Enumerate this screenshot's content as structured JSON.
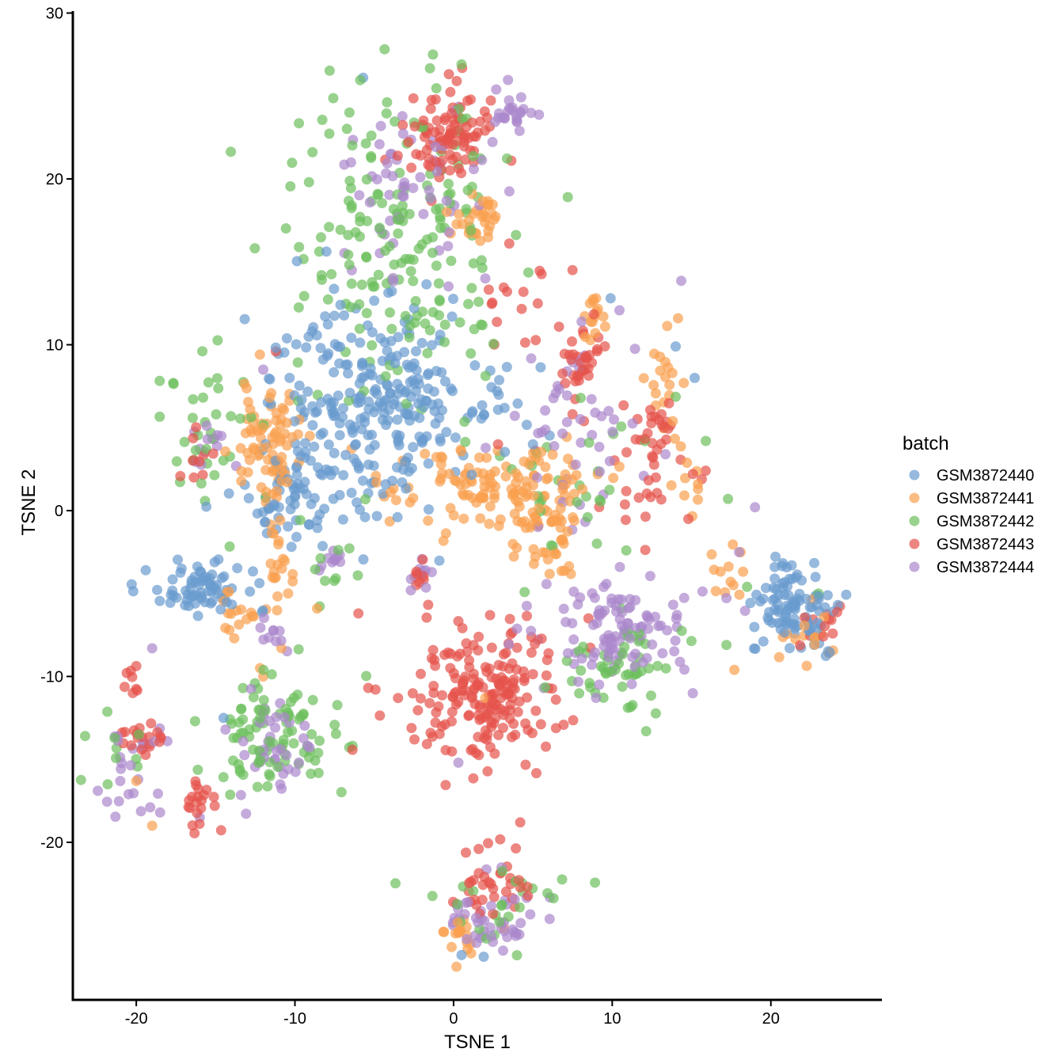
{
  "chart_data": {
    "type": "scatter",
    "title": "",
    "xlabel": "TSNE 1",
    "ylabel": "TSNE 2",
    "xlim": [
      -24,
      27
    ],
    "ylim": [
      -29.5,
      30.5
    ],
    "x_ticks": [
      -20,
      -10,
      0,
      10,
      20
    ],
    "y_ticks": [
      -20,
      -10,
      0,
      10,
      20,
      30
    ],
    "x_tick_labels": [
      "-20",
      "-10",
      "0",
      "10",
      "20"
    ],
    "y_tick_labels": [
      "-20",
      "-10",
      "0",
      "10",
      "20",
      "30"
    ],
    "grid": false,
    "legend": {
      "title": "batch",
      "placement": "right"
    },
    "series": [
      {
        "name": "GSM3872440",
        "color": "#6a9bcf",
        "clusters": [
          {
            "cx": -5.0,
            "cy": 6.5,
            "sx": 3.0,
            "sy": 3.0,
            "n": 260
          },
          {
            "cx": -10.5,
            "cy": 0.3,
            "sx": 1.8,
            "sy": 1.2,
            "n": 50
          },
          {
            "cx": -16.0,
            "cy": -4.8,
            "sx": 1.5,
            "sy": 0.9,
            "n": 70
          },
          {
            "cx": 21.5,
            "cy": -5.5,
            "sx": 1.6,
            "sy": 1.5,
            "n": 100
          },
          {
            "cx": 2.0,
            "cy": 6.0,
            "sx": 1.5,
            "sy": 1.5,
            "n": 20
          },
          {
            "cx": -8.5,
            "cy": 2.5,
            "sx": 1.2,
            "sy": 1.0,
            "n": 15
          }
        ],
        "points": [
          {
            "x": -5.7,
            "y": 26.1
          },
          {
            "x": 9.9,
            "y": 12.8
          },
          {
            "x": 15.2,
            "y": 8.0
          },
          {
            "x": 14.0,
            "y": 9.9
          },
          {
            "x": 0.5,
            "y": -26.8
          },
          {
            "x": 1.9,
            "y": -26.9
          },
          {
            "x": -14.5,
            "y": -12.5
          }
        ]
      },
      {
        "name": "GSM3872441",
        "color": "#f9a04e",
        "clusters": [
          {
            "cx": -11.5,
            "cy": 4.0,
            "sx": 1.0,
            "sy": 2.0,
            "n": 80
          },
          {
            "cx": 2.0,
            "cy": 1.5,
            "sx": 3.0,
            "sy": 1.3,
            "n": 110
          },
          {
            "cx": 6.0,
            "cy": -1.0,
            "sx": 1.5,
            "sy": 1.5,
            "n": 60
          },
          {
            "cx": 1.5,
            "cy": 17.5,
            "sx": 0.9,
            "sy": 0.9,
            "n": 30
          },
          {
            "cx": 8.9,
            "cy": 11.8,
            "sx": 0.4,
            "sy": 0.7,
            "n": 15
          },
          {
            "cx": 13.5,
            "cy": 7.5,
            "sx": 0.8,
            "sy": 1.5,
            "n": 20
          },
          {
            "cx": -13.8,
            "cy": -6.5,
            "sx": 0.6,
            "sy": 0.8,
            "n": 15
          },
          {
            "cx": -11.0,
            "cy": -4.0,
            "sx": 0.5,
            "sy": 1.5,
            "n": 20
          },
          {
            "cx": 17.5,
            "cy": -4.0,
            "sx": 0.9,
            "sy": 0.8,
            "n": 12
          },
          {
            "cx": 22.5,
            "cy": -7.5,
            "sx": 1.0,
            "sy": 0.8,
            "n": 15
          },
          {
            "cx": 0.3,
            "cy": -25.5,
            "sx": 0.9,
            "sy": 0.7,
            "n": 18
          },
          {
            "cx": 15.0,
            "cy": 1.5,
            "sx": 0.5,
            "sy": 1.0,
            "n": 10
          }
        ],
        "points": [
          {
            "x": -12.2,
            "y": -9.5
          },
          {
            "x": -12.0,
            "y": -10.0
          },
          {
            "x": -19.0,
            "y": -19.0
          },
          {
            "x": -20.0,
            "y": -16.3
          },
          {
            "x": 17.7,
            "y": -9.6
          },
          {
            "x": 2.0,
            "y": -11.3
          },
          {
            "x": -8.6,
            "y": -5.9
          }
        ]
      },
      {
        "name": "GSM3872442",
        "color": "#6cbf5c",
        "clusters": [
          {
            "cx": -4.0,
            "cy": 16.5,
            "sx": 3.8,
            "sy": 5.5,
            "n": 190
          },
          {
            "cx": -11.0,
            "cy": -13.5,
            "sx": 2.0,
            "sy": 2.0,
            "n": 90
          },
          {
            "cx": 10.5,
            "cy": -9.5,
            "sx": 1.6,
            "sy": 1.4,
            "n": 50
          },
          {
            "cx": 2.5,
            "cy": -23.5,
            "sx": 2.3,
            "sy": 1.4,
            "n": 25
          },
          {
            "cx": -15.3,
            "cy": 4.5,
            "sx": 1.4,
            "sy": 2.8,
            "n": 35
          },
          {
            "cx": -21.0,
            "cy": -15.0,
            "sx": 0.8,
            "sy": 1.2,
            "n": 10
          },
          {
            "cx": 8.0,
            "cy": 3.0,
            "sx": 3.5,
            "sy": 3.0,
            "n": 30
          },
          {
            "cx": -7.5,
            "cy": -3.0,
            "sx": 1.0,
            "sy": 1.0,
            "n": 10
          }
        ],
        "points": [
          {
            "x": -1.3,
            "y": 27.5
          },
          {
            "x": 0.5,
            "y": 26.9
          },
          {
            "x": 7.2,
            "y": 18.9
          },
          {
            "x": 17.3,
            "y": 0.7
          },
          {
            "x": 15.9,
            "y": 4.2
          },
          {
            "x": 18.5,
            "y": -4.6
          },
          {
            "x": 23.0,
            "y": -5.0
          },
          {
            "x": 17.2,
            "y": -8.1
          }
        ]
      },
      {
        "name": "GSM3872443",
        "color": "#e5534b",
        "clusters": [
          {
            "cx": 0.0,
            "cy": 22.5,
            "sx": 1.5,
            "sy": 1.4,
            "n": 90
          },
          {
            "cx": 2.0,
            "cy": -11.0,
            "sx": 2.6,
            "sy": 2.2,
            "n": 190
          },
          {
            "cx": 8.0,
            "cy": 8.5,
            "sx": 0.9,
            "sy": 1.2,
            "n": 35
          },
          {
            "cx": 12.8,
            "cy": 4.8,
            "sx": 0.7,
            "sy": 0.8,
            "n": 20
          },
          {
            "cx": -19.5,
            "cy": -13.8,
            "sx": 0.8,
            "sy": 0.6,
            "n": 20
          },
          {
            "cx": -16.2,
            "cy": -17.8,
            "sx": 0.5,
            "sy": 0.8,
            "n": 20
          },
          {
            "cx": -20.0,
            "cy": -10.2,
            "sx": 0.3,
            "sy": 0.5,
            "n": 8
          },
          {
            "cx": 2.5,
            "cy": -22.5,
            "sx": 1.3,
            "sy": 1.2,
            "n": 35
          },
          {
            "cx": 4.0,
            "cy": 13.0,
            "sx": 1.5,
            "sy": 1.5,
            "n": 15
          },
          {
            "cx": 11.0,
            "cy": 2.0,
            "sx": 2.5,
            "sy": 2.0,
            "n": 25
          },
          {
            "cx": -16.0,
            "cy": 3.0,
            "sx": 0.6,
            "sy": 1.0,
            "n": 10
          },
          {
            "cx": -2.2,
            "cy": -4.0,
            "sx": 0.3,
            "sy": 0.5,
            "n": 8
          },
          {
            "cx": 23.0,
            "cy": -7.0,
            "sx": 1.0,
            "sy": 0.8,
            "n": 12
          }
        ],
        "points": [
          {
            "x": 0.2,
            "y": 25.9
          },
          {
            "x": 7.5,
            "y": 14.5
          },
          {
            "x": -11.2,
            "y": 9.6
          },
          {
            "x": -6.0,
            "y": -6.2
          },
          {
            "x": 0.8,
            "y": -8.0
          },
          {
            "x": 4.2,
            "y": -18.8
          },
          {
            "x": 2.8,
            "y": 4.0
          },
          {
            "x": -3.5,
            "y": -11.3
          },
          {
            "x": 8.5,
            "y": -6.5
          },
          {
            "x": 14.8,
            "y": -0.5
          }
        ]
      },
      {
        "name": "GSM3872444",
        "color": "#ab87cc",
        "clusters": [
          {
            "cx": 3.5,
            "cy": 24.0,
            "sx": 0.8,
            "sy": 0.7,
            "n": 25
          },
          {
            "cx": -3.0,
            "cy": 19.5,
            "sx": 2.2,
            "sy": 2.5,
            "n": 60
          },
          {
            "cx": 10.5,
            "cy": -7.5,
            "sx": 2.2,
            "sy": 1.8,
            "n": 110
          },
          {
            "cx": 2.5,
            "cy": -24.8,
            "sx": 1.5,
            "sy": 1.0,
            "n": 45
          },
          {
            "cx": -11.0,
            "cy": -14.5,
            "sx": 1.5,
            "sy": 1.5,
            "n": 40
          },
          {
            "cx": -20.0,
            "cy": -15.5,
            "sx": 1.2,
            "sy": 2.0,
            "n": 25
          },
          {
            "cx": 8.0,
            "cy": 4.0,
            "sx": 2.5,
            "sy": 3.5,
            "n": 50
          },
          {
            "cx": -15.5,
            "cy": 3.8,
            "sx": 0.6,
            "sy": 0.8,
            "n": 12
          },
          {
            "cx": -7.5,
            "cy": -3.0,
            "sx": 0.5,
            "sy": 0.5,
            "n": 10
          },
          {
            "cx": -2.0,
            "cy": -3.8,
            "sx": 0.3,
            "sy": 0.4,
            "n": 10
          },
          {
            "cx": -11.0,
            "cy": -7.5,
            "sx": 0.6,
            "sy": 0.6,
            "n": 10
          }
        ],
        "points": [
          {
            "x": -19.0,
            "y": -8.3
          },
          {
            "x": 19.0,
            "y": 0.2
          },
          {
            "x": 0.3,
            "y": -15.2
          },
          {
            "x": -18.5,
            "y": -18.2
          },
          {
            "x": -16.0,
            "y": -18.5
          },
          {
            "x": -12.0,
            "y": 8.5
          },
          {
            "x": 2.0,
            "y": 14.0
          },
          {
            "x": 18.0,
            "y": -2.5
          }
        ]
      }
    ]
  }
}
